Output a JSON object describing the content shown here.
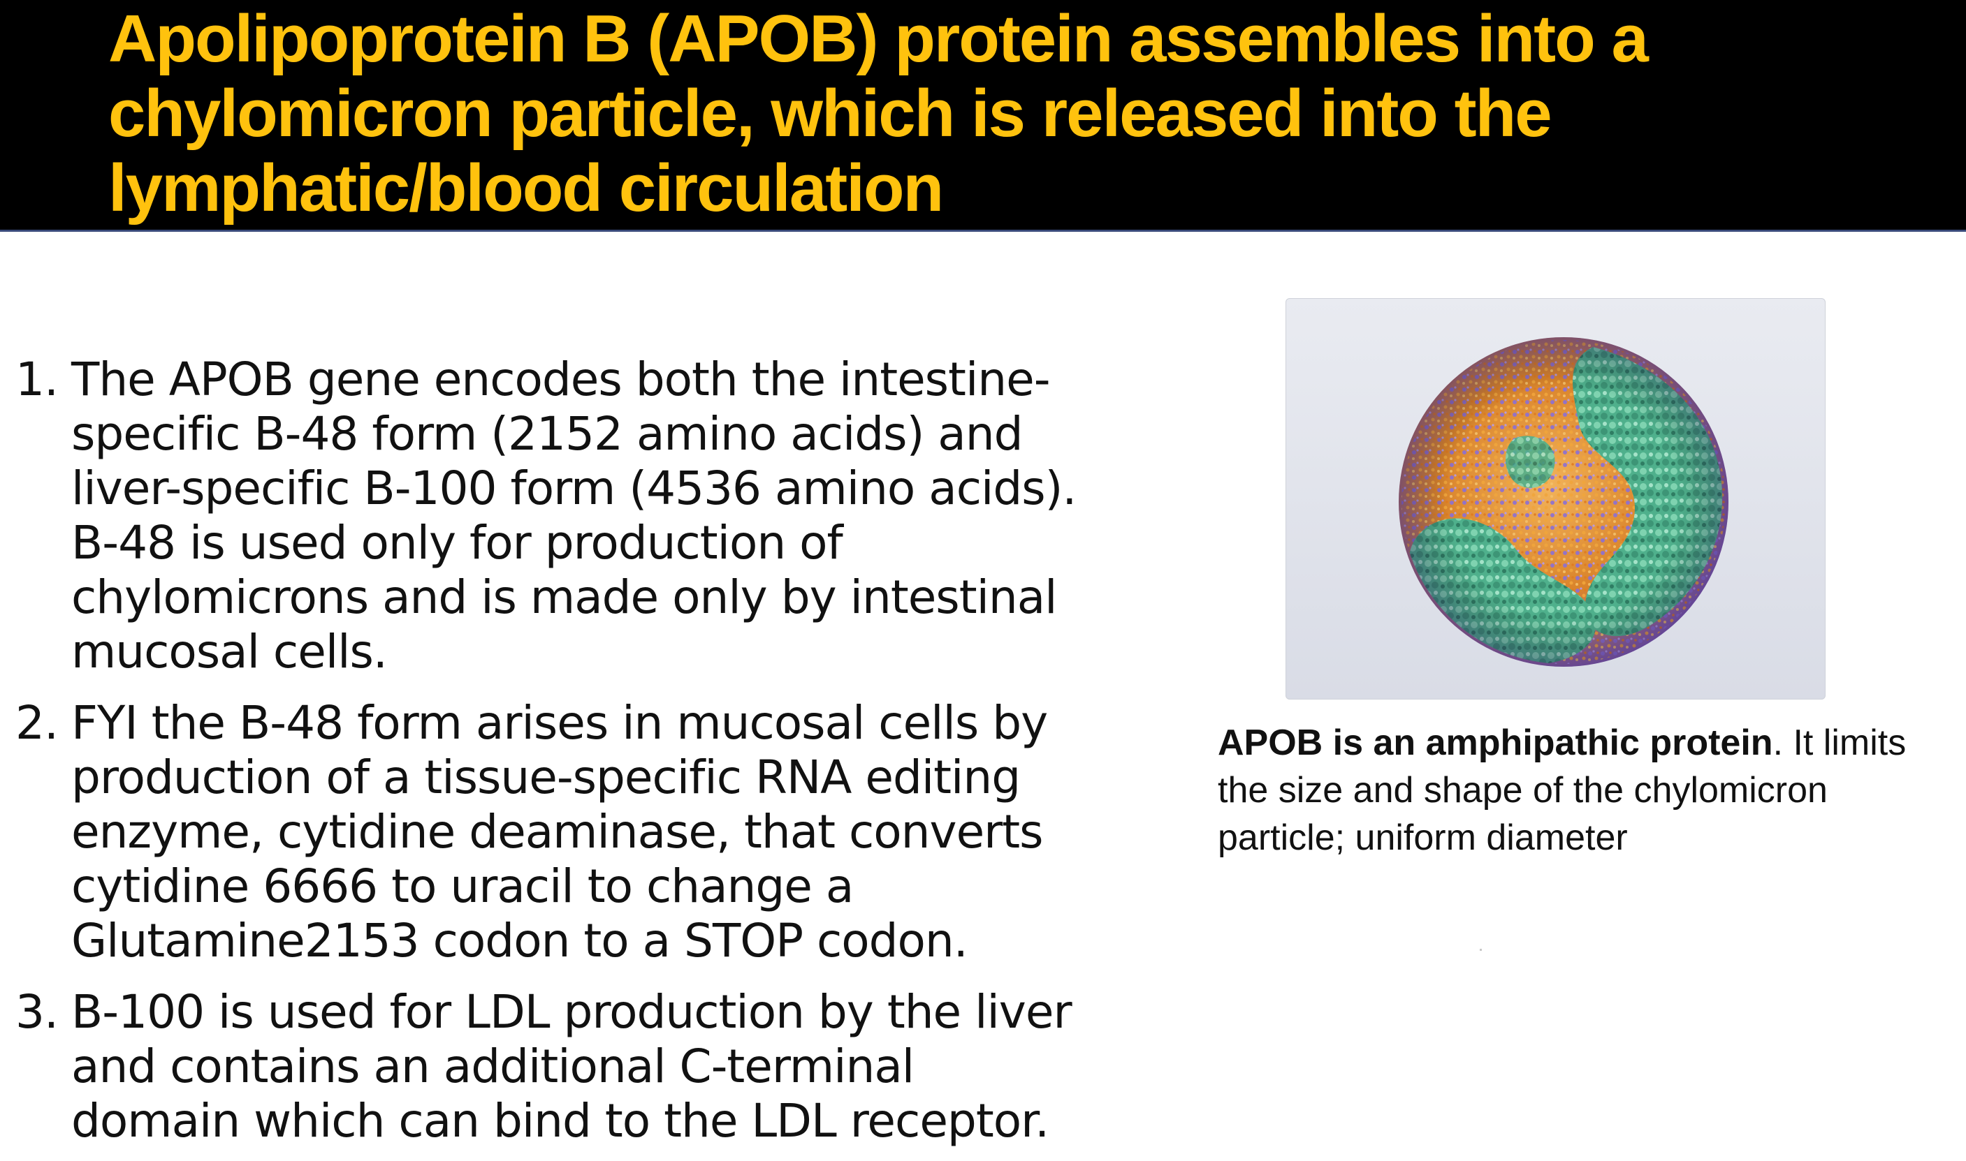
{
  "slide": {
    "title": "Apolipoprotein B (APOB) protein assembles into a chylomicron particle, which is released into the lymphatic/blood circulation",
    "title_color": "#ffc20e",
    "title_background": "#000000"
  },
  "points": [
    {
      "number": "1.",
      "text": "The APOB gene encodes both the intestine-specific B-48 form (2152 amino acids) and liver-specific B-100 form (4536 amino acids).  B-48 is used only for production of chylomicrons and is made only by intestinal mucosal cells."
    },
    {
      "number": "2.",
      "text": "FYI the B-48 form arises in mucosal cells by production of a tissue-specific RNA editing enzyme, cytidine deaminase, that converts cytidine 6666 to uracil to change a Glutamine2153 codon to a STOP codon."
    },
    {
      "number": "3.",
      "text": "B-100 is used for LDL production by the liver and contains an additional C-terminal domain which can bind to the LDL receptor."
    }
  ],
  "figure": {
    "icon": "chylomicron-particle-illustration",
    "colors": {
      "protein": "#4fb08c",
      "lipid": "#e8962e",
      "phospholipid": "#8a6fd6"
    }
  },
  "caption": {
    "bold": "APOB is an amphipathic protein",
    "rest": ".  It limits the size and shape of the chylomicron particle; uniform diameter"
  }
}
